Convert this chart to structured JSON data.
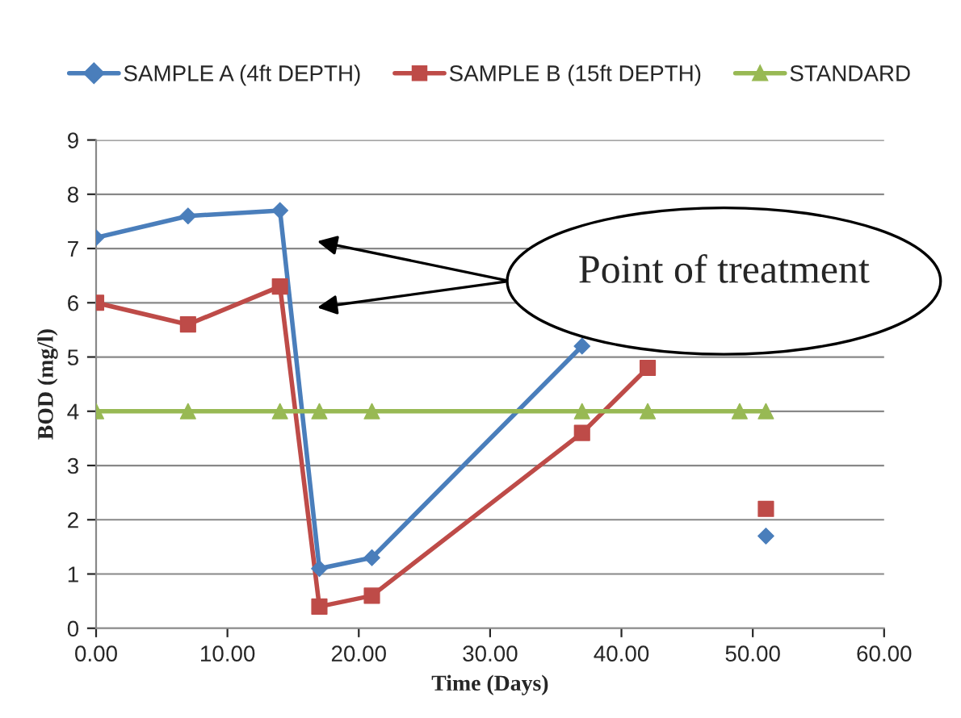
{
  "chart_data": {
    "type": "line",
    "xlabel": "Time (Days)",
    "ylabel": "BOD (mg/l)",
    "series": [
      {
        "name": "SAMPLE A (4ft DEPTH)",
        "color": "#4a7ebb",
        "marker": "diamond",
        "x": [
          0,
          7,
          14,
          17,
          21,
          37,
          42,
          49,
          51
        ],
        "values": [
          7.2,
          7.6,
          7.7,
          1.1,
          1.3,
          5.2,
          null,
          null,
          1.7
        ]
      },
      {
        "name": "SAMPLE B (15ft DEPTH)",
        "color": "#be4b48",
        "marker": "square",
        "x": [
          0,
          7,
          14,
          17,
          21,
          37,
          42,
          49,
          51
        ],
        "values": [
          6.0,
          5.6,
          6.3,
          0.4,
          0.6,
          3.6,
          4.8,
          null,
          2.2
        ]
      },
      {
        "name": "STANDARD",
        "color": "#98b954",
        "marker": "triangle",
        "x": [
          0,
          7,
          14,
          17,
          21,
          37,
          42,
          49,
          51
        ],
        "values": [
          4,
          4,
          4,
          4,
          4,
          4,
          4,
          4,
          4
        ]
      }
    ],
    "xlim": [
      0,
      60
    ],
    "xticks": [
      {
        "value": 0,
        "label": "0.00"
      },
      {
        "value": 10,
        "label": "10.00"
      },
      {
        "value": 20,
        "label": "20.00"
      },
      {
        "value": 30,
        "label": "30.00"
      },
      {
        "value": 40,
        "label": "40.00"
      },
      {
        "value": 50,
        "label": "50.00"
      },
      {
        "value": 60,
        "label": "60.00"
      }
    ],
    "ylim": [
      0,
      9
    ],
    "yticks": [
      0,
      1,
      2,
      3,
      4,
      5,
      6,
      7,
      8,
      9
    ],
    "grid": "y",
    "legend": "top",
    "line_style": "solid",
    "annotations": [
      "Point of treatment"
    ]
  }
}
